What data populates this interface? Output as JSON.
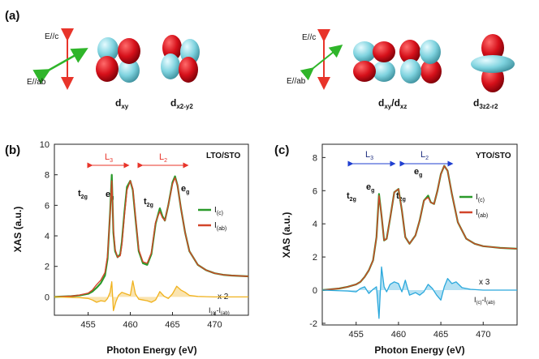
{
  "panel_a": {
    "label": "(a)",
    "left": {
      "e_c": "E//c",
      "e_ab": "E//ab",
      "orb1_main": "d",
      "orb1_sub": "xy",
      "orb2_main": "d",
      "orb2_sub": "x2-y2"
    },
    "right": {
      "e_c": "E//c",
      "e_ab": "E//ab",
      "orb1_main": "d",
      "orb1_sub": "xy",
      "orb1_mid": "/d",
      "orb1_sub2": "xz",
      "orb2_main": "d",
      "orb2_sub": "3z2-r2"
    },
    "colors": {
      "lobe_red": "#d6101a",
      "lobe_cyan": "#7fd3df",
      "arrow_green": "#2fb52a",
      "arrow_red": "#e8342a"
    }
  },
  "chart_data": [
    {
      "type": "line",
      "panel_label": "(b)",
      "sample": "LTO/STO",
      "xlabel": "Photon Energy (eV)",
      "ylabel": "XAS (a.u.)",
      "xlim": [
        451,
        474
      ],
      "ylim": [
        -1.2,
        10
      ],
      "xticks": [
        455,
        460,
        465,
        470
      ],
      "yticks": [
        0,
        2,
        4,
        6,
        8,
        10
      ],
      "edge_labels": [
        "L3",
        "L2"
      ],
      "edge_label_color": "#e8342a",
      "peak_labels": {
        "t2g": "t2g",
        "eg": "eg"
      },
      "legend": [
        "I(c)",
        "I(ab)"
      ],
      "diff_label": "I(c)-I(ab)",
      "scale_note": "x 2",
      "series": [
        {
          "name": "I(c)",
          "color": "#2a9a2a",
          "x": [
            451,
            453,
            454,
            455,
            455.5,
            456,
            456.5,
            457,
            457.3,
            457.6,
            457.8,
            458,
            458.2,
            458.5,
            458.8,
            459,
            459.3,
            459.6,
            460,
            460.3,
            460.6,
            461,
            461.5,
            462,
            462.5,
            463,
            463.5,
            463.8,
            464.1,
            464.5,
            465,
            465.3,
            465.6,
            466,
            466.5,
            467,
            468,
            469,
            470,
            471,
            472,
            474
          ],
          "values": [
            0,
            0.05,
            0.1,
            0.2,
            0.35,
            0.6,
            0.9,
            1.4,
            2.5,
            5.5,
            8.0,
            4.2,
            3.0,
            2.6,
            2.8,
            3.6,
            5.5,
            7.2,
            7.6,
            7.0,
            5.2,
            3.0,
            2.2,
            2.1,
            2.8,
            4.8,
            5.8,
            5.3,
            5.0,
            6.0,
            7.5,
            7.9,
            7.3,
            5.8,
            4.2,
            3.0,
            2.1,
            1.75,
            1.55,
            1.45,
            1.4,
            1.35
          ]
        },
        {
          "name": "I(ab)",
          "color": "#d2452a",
          "x": [
            451,
            453,
            454,
            455,
            455.5,
            456,
            456.5,
            457,
            457.3,
            457.6,
            457.8,
            458,
            458.2,
            458.5,
            458.8,
            459,
            459.3,
            459.6,
            460,
            460.3,
            460.6,
            461,
            461.5,
            462,
            462.5,
            463,
            463.5,
            463.8,
            464.1,
            464.5,
            465,
            465.3,
            465.6,
            466,
            466.5,
            467,
            468,
            469,
            470,
            471,
            472,
            474
          ],
          "values": [
            0,
            0.05,
            0.12,
            0.25,
            0.45,
            0.8,
            1.1,
            1.6,
            2.7,
            5.4,
            7.6,
            4.4,
            3.1,
            2.6,
            2.7,
            3.4,
            5.3,
            7.0,
            7.6,
            7.1,
            5.3,
            3.1,
            2.3,
            2.2,
            2.9,
            4.9,
            5.6,
            5.2,
            5.0,
            6.0,
            7.4,
            7.8,
            7.3,
            5.8,
            4.2,
            3.0,
            2.1,
            1.75,
            1.55,
            1.45,
            1.4,
            1.35
          ]
        },
        {
          "name": "I(c)-I(ab)",
          "color": "#f0b21e",
          "x": [
            451,
            454,
            455,
            455.5,
            456,
            456.5,
            457,
            457.3,
            457.6,
            457.8,
            458,
            458.3,
            458.6,
            459,
            459.5,
            460,
            460.3,
            460.6,
            461,
            461.5,
            462,
            462.5,
            463,
            463.5,
            464,
            464.5,
            465,
            465.5,
            466,
            466.5,
            467,
            468,
            470,
            474
          ],
          "values": [
            0,
            -0.05,
            -0.1,
            -0.2,
            -0.35,
            -0.25,
            -0.3,
            -0.1,
            0.3,
            1.0,
            -0.9,
            -0.3,
            0.1,
            0.3,
            0.2,
            0.1,
            1.05,
            0.2,
            -0.15,
            -0.2,
            -0.25,
            -0.35,
            -0.2,
            0.35,
            0.05,
            -0.1,
            0.2,
            0.7,
            0.45,
            0.3,
            0.1,
            0.03,
            0,
            0
          ]
        }
      ]
    },
    {
      "type": "line",
      "panel_label": "(c)",
      "sample": "YTO/STO",
      "xlabel": "Photon Energy (eV)",
      "ylabel": "XAS (a.u.)",
      "xlim": [
        451,
        474
      ],
      "ylim": [
        -2.1,
        8.8
      ],
      "xticks": [
        455,
        460,
        465,
        470
      ],
      "yticks": [
        -2,
        0,
        2,
        4,
        6,
        8
      ],
      "edge_labels": [
        "L3",
        "L2"
      ],
      "edge_label_color": "#1f3fd0",
      "peak_labels": {
        "t2g": "t2g",
        "eg": "eg"
      },
      "legend": [
        "I(c)",
        "I(ab)"
      ],
      "diff_label": "I(c)-I(ab)",
      "scale_note": "x 3",
      "series": [
        {
          "name": "I(c)",
          "color": "#2a9a2a",
          "x": [
            451,
            453,
            454,
            455,
            455.5,
            456,
            456.5,
            457,
            457.4,
            457.7,
            458,
            458.3,
            458.6,
            459,
            459.5,
            460,
            460.4,
            460.8,
            461.3,
            462,
            462.5,
            463,
            463.5,
            463.8,
            464.2,
            464.6,
            465,
            465.4,
            465.8,
            466.3,
            467,
            468,
            469,
            470,
            471,
            472,
            474
          ],
          "values": [
            0,
            0.1,
            0.2,
            0.35,
            0.5,
            0.8,
            1.2,
            1.8,
            3.2,
            5.8,
            4.5,
            3.0,
            3.1,
            4.3,
            5.9,
            6.1,
            4.8,
            3.2,
            2.8,
            3.3,
            4.2,
            5.4,
            5.7,
            5.3,
            5.2,
            6.0,
            7.0,
            7.5,
            7.2,
            5.8,
            4.1,
            3.1,
            2.8,
            2.65,
            2.6,
            2.55,
            2.5
          ]
        },
        {
          "name": "I(ab)",
          "color": "#d2452a",
          "x": [
            451,
            453,
            454,
            455,
            455.5,
            456,
            456.5,
            457,
            457.4,
            457.7,
            458,
            458.3,
            458.6,
            459,
            459.5,
            460,
            460.4,
            460.8,
            461.3,
            462,
            462.5,
            463,
            463.5,
            463.8,
            464.2,
            464.6,
            465,
            465.4,
            465.8,
            466.3,
            467,
            468,
            469,
            470,
            471,
            472,
            474
          ],
          "values": [
            0,
            0.1,
            0.2,
            0.35,
            0.5,
            0.8,
            1.2,
            1.8,
            3.2,
            5.7,
            4.5,
            3.0,
            3.1,
            4.3,
            5.9,
            6.1,
            4.8,
            3.2,
            2.8,
            3.3,
            4.2,
            5.4,
            5.6,
            5.3,
            5.2,
            6.0,
            7.0,
            7.5,
            7.2,
            5.8,
            4.1,
            3.1,
            2.8,
            2.65,
            2.6,
            2.55,
            2.5
          ]
        },
        {
          "name": "I(c)-I(ab)",
          "color": "#2aa8dc",
          "x": [
            451,
            454,
            455,
            455.5,
            456,
            456.5,
            457,
            457.4,
            457.7,
            458,
            458.3,
            458.6,
            459,
            459.5,
            460,
            460.4,
            460.8,
            461.3,
            462,
            462.5,
            463,
            463.5,
            464,
            464.5,
            465,
            465.4,
            465.8,
            466.3,
            466.8,
            467.5,
            468.5,
            470,
            474
          ],
          "values": [
            0,
            -0.05,
            -0.1,
            0.1,
            0.2,
            -0.2,
            0.05,
            0.2,
            -1.7,
            1.4,
            0.2,
            -0.1,
            0.35,
            0.5,
            0.4,
            -0.1,
            0.6,
            -0.3,
            -0.15,
            -0.3,
            -0.1,
            0.35,
            0.1,
            -0.3,
            -0.6,
            0.2,
            0.7,
            0.4,
            0.5,
            0.15,
            0.05,
            0,
            0
          ]
        }
      ]
    }
  ]
}
